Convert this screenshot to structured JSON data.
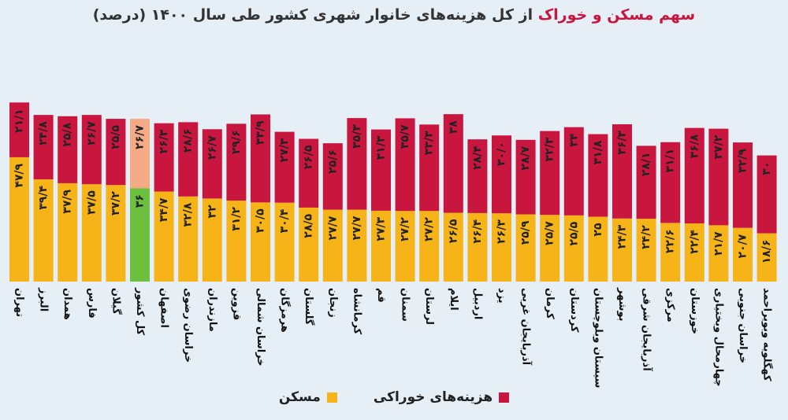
{
  "title": {
    "highlight": "سهم مسکن و خوراک",
    "rest": " از کل هزینه‌های خانوار شهری کشور طی سال ۱۴۰۰ (درصد)"
  },
  "legend": [
    {
      "label": "هزینه‌های خوراکی",
      "color": "#c8163f"
    },
    {
      "label": "مسکن",
      "color": "#f7b418"
    }
  ],
  "colors": {
    "food": "#c8163f",
    "housing": "#f7b418",
    "avg_food": "#f5aa86",
    "avg_housing": "#6cbf3f"
  },
  "chart_data": {
    "type": "bar",
    "stacked": true,
    "unit": "درصد",
    "categories": [
      "تهران",
      "البرز",
      "همدان",
      "فارس",
      "گیلان",
      "کل کشور",
      "اصفهان",
      "خراسان رضوی",
      "مازندران",
      "قزوین",
      "خراسان شمالی",
      "هرمزگان",
      "گلستان",
      "زنجان",
      "کرمانشاه",
      "قم",
      "سمنان",
      "لرستان",
      "ایلام",
      "اردبیل",
      "یزد",
      "آذربایجان غربی",
      "کرمان",
      "کردستان",
      "سیستان وبلوچستان",
      "بوشهر",
      "آذربایجان شرقی",
      "مرکزی",
      "خوزستان",
      "چهارمحال وبختیاری",
      "خراسان جنوبی",
      "کهگلویه وبویراحمد"
    ],
    "highlight_category": "کل کشور",
    "series": [
      {
        "name": "مسکن",
        "values": [
          47.9,
          39.4,
          37.9,
          37.5,
          37.2,
          36,
          34.7,
          32.8,
          32,
          31.2,
          30.5,
          30.4,
          28.5,
          27.7,
          27.7,
          27.3,
          27.2,
          27.2,
          26.5,
          26.4,
          26.3,
          25.9,
          25.7,
          25.5,
          25,
          24.3,
          24.2,
          22.6,
          22.4,
          21.7,
          20.7,
          18.6
        ],
        "labels": [
          "۴۷/۹",
          "۳۹/۴",
          "۳۷/۹",
          "۳۷/۵",
          "۳۷/۲",
          "۳۶",
          "۳۴/۷",
          "۳۲/۸",
          "۳۲",
          "۳۱/۲",
          "۳۰/۵",
          "۳۰/۴",
          "۲۸/۵",
          "۲۷/۷",
          "۲۷/۷",
          "۲۷/۳",
          "۲۷/۲",
          "۲۷/۲",
          "۲۶/۵",
          "۲۶/۴",
          "۲۶/۳",
          "۲۵/۹",
          "۲۵/۷",
          "۲۵/۵",
          "۲۵",
          "۲۴/۳",
          "۲۴/۲",
          "۲۲/۶",
          "۲۲/۴",
          "۲۱/۷",
          "۲۰/۷",
          "۱۸/۶"
        ]
      },
      {
        "name": "هزینه‌های خوراکی",
        "values": [
          21.1,
          24.8,
          25.8,
          26.7,
          25.5,
          26.7,
          26.3,
          28.6,
          26.7,
          29.6,
          33.9,
          27.3,
          26.5,
          25.6,
          35.3,
          31.3,
          35.7,
          33.3,
          38,
          28.4,
          30,
          28.7,
          32.3,
          34,
          31.8,
          36.3,
          28.1,
          31.1,
          36.8,
          37.2,
          32.9,
          30
        ],
        "labels": [
          "۲۱/۱",
          "۲۴/۸",
          "۲۵/۸",
          "۲۶/۷",
          "۲۵/۵",
          "۲۶/۷",
          "۲۶/۳",
          "۲۸/۶",
          "۲۶/۷",
          "۲۹/۶",
          "۳۳/۹",
          "۲۷/۳",
          "۲۶/۵",
          "۲۵/۶",
          "۳۵/۳",
          "۳۱/۳",
          "۳۵/۷",
          "۳۳/۳",
          "۳۸",
          "۲۸/۴",
          "۳۰/۰",
          "۲۸/۷",
          "۳۲/۳",
          "۳۴",
          "۳۱/۸",
          "۳۶/۳",
          "۲۸/۱",
          "۳۱/۱",
          "۳۶/۸",
          "۳۷/۲",
          "۳۲/۹",
          "۳۰"
        ]
      }
    ]
  }
}
